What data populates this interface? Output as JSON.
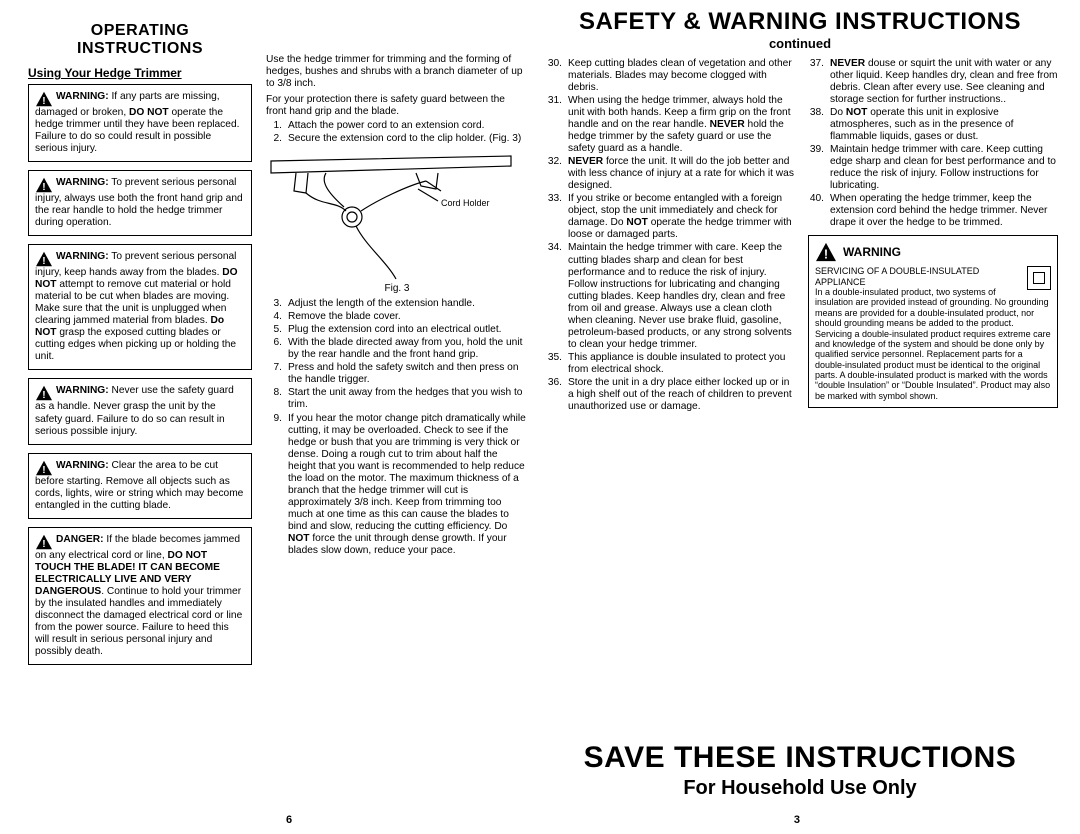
{
  "left_header": "OPERATING INSTRUCTIONS",
  "subheader": "Using Your Hedge Trimmer",
  "right_header": "SAFETY & WARNING INSTRUCTIONS",
  "continued": "continued",
  "save_title": "SAVE THESE INSTRUCTIONS",
  "save_sub": "For Household Use Only",
  "page_left": "6",
  "page_right": "3",
  "fig_label": "Fig. 3",
  "cord_holder": "Cord Holder",
  "warnings": [
    {
      "lead": "WARNING:",
      "text": " If any parts are missing, damaged or broken, ",
      "bold2": "DO NOT",
      "text2": " operate the hedge trimmer until they have been replaced. Failure to do so could result in possible serious injury."
    },
    {
      "lead": "WARNING:",
      "text": " To prevent serious personal injury, always use both the front hand grip and the rear handle to hold the hedge trimmer during operation."
    },
    {
      "lead": "WARNING:",
      "text": " To prevent serious personal injury, keep hands away from the blades. ",
      "bold2": "DO NOT",
      "text2": " attempt to remove cut material or hold material to be cut when blades are moving. Make sure that the unit is unplugged when clearing jammed material from blades. ",
      "bold3": "Do NOT",
      "text3": " grasp the exposed cutting blades or cutting edges when picking up or holding the unit."
    },
    {
      "lead": "WARNING:",
      "text": " Never use the safety guard as a handle. Never grasp the unit by the safety guard. Failure to do so can result in serious possible injury."
    },
    {
      "lead": "WARNING:",
      "text": " Clear the area to be cut before starting. Remove all objects such as cords, lights, wire or string which may become entangled in the cutting blade."
    },
    {
      "lead": "DANGER:",
      "text": " If the blade becomes jammed on any electrical cord or line, ",
      "bold2": "DO NOT TOUCH THE BLADE! IT CAN BECOME ELECTRICALLY LIVE AND VERY DANGEROUS",
      "text2": ". Continue to hold your trimmer by the insulated handles and immediately disconnect the damaged electrical cord or line from the power source. Failure to heed this will result in serious personal injury and possibly death."
    }
  ],
  "intro_para": "Use the hedge trimmer for trimming and the forming of hedges, bushes and shrubs with a branch diameter of up to 3/8 inch.",
  "intro_para2": "For your protection there is safety guard between the front hand grip and the blade.",
  "steps": [
    {
      "n": "1.",
      "t": "Attach the power cord to an extension cord."
    },
    {
      "n": "2.",
      "t": "Secure the extension cord to the clip holder. (Fig. 3)"
    },
    {
      "n": "3.",
      "t": "Adjust the length of the extension handle."
    },
    {
      "n": "4.",
      "t": "Remove the blade cover."
    },
    {
      "n": "5.",
      "t": "Plug the extension cord into an electrical outlet."
    },
    {
      "n": "6.",
      "t": "With the blade directed away from you, hold the unit by the rear handle and the front hand grip."
    },
    {
      "n": "7.",
      "t": "Press and hold the safety switch and then press on the handle trigger."
    },
    {
      "n": "8.",
      "t": "Start the unit away from the hedges that you wish to trim."
    },
    {
      "n": "9.",
      "t": "If you hear the motor change pitch dramatically while cutting, it may be overloaded. Check to see if the hedge or bush that you are trimming is very thick or dense. Doing a rough cut to trim about half the height that you want is recommended to help reduce the load on the motor. The maximum thickness of a branch that the hedge trimmer will cut is approximately 3/8 inch. Keep from trimming too much at one time as this can cause the blades to bind and slow, reducing the cutting efficiency. Do NOT force the unit through dense growth. If your blades slow down, reduce your pace."
    }
  ],
  "safety_steps": [
    {
      "n": "30.",
      "t": "Keep cutting blades clean of vegetation and other materials. Blades may become clogged with debris."
    },
    {
      "n": "31.",
      "t": "When using the hedge trimmer, always hold the unit with both hands. Keep a firm grip on the front handle and on the rear handle. NEVER hold the hedge trimmer by the safety guard or use the safety guard as a handle."
    },
    {
      "n": "32.",
      "t": "NEVER force the unit. It will do the job better and with less chance of injury at a rate for which it was designed."
    },
    {
      "n": "33.",
      "t": "If you strike or become entangled with a foreign object, stop the unit immediately and check for damage. Do NOT operate the hedge trimmer with loose or damaged parts."
    },
    {
      "n": "34.",
      "t": "Maintain the hedge trimmer with care. Keep the cutting blades sharp and clean for best performance and to reduce the risk of injury. Follow instructions for lubricating and changing cutting blades. Keep handles dry, clean and free from oil and grease. Always use a clean cloth when cleaning. Never use brake fluid, gasoline, petroleum-based products, or any strong solvents to clean your hedge trimmer."
    },
    {
      "n": "35.",
      "t": "This appliance is double insulated to protect you from electrical shock."
    },
    {
      "n": "36.",
      "t": "Store the unit in a dry place either locked up or in a high shelf out of the reach of children to prevent unauthorized use or damage."
    }
  ],
  "safety_steps_right": [
    {
      "n": "37.",
      "t": "NEVER douse or squirt the unit with water or any other liquid. Keep handles dry, clean and free from debris. Clean after every use. See cleaning and storage section for further instructions.."
    },
    {
      "n": "38.",
      "t": "Do NOT operate this unit in explosive atmospheres, such as in the presence of flammable liquids, gases or dust."
    },
    {
      "n": "39.",
      "t": "Maintain hedge trimmer with care. Keep cutting edge sharp and clean for best performance and to reduce the risk of injury. Follow instructions for lubricating."
    },
    {
      "n": "40.",
      "t": "When operating the hedge trimmer, keep the extension cord behind the hedge trimmer. Never drape it over the hedge to be trimmed."
    }
  ],
  "warning_box": {
    "title": "WARNING",
    "sub": "SERVICING OF A DOUBLE-INSULATED APPLIANCE",
    "body": "In a double-insulated product, two systems of insulation are provided instead of grounding. No grounding means are provided for a double-insulated product, nor should grounding means be added to the product. Servicing a double-insulated product requires extreme care and knowledge of the system and should be done only by qualified service personnel. Replacement parts for a double-insulated product must be identical to the original parts. A double-insulated product is marked with the words “double Insulation” or “Double Insulated”. Product may also be marked with symbol shown."
  }
}
